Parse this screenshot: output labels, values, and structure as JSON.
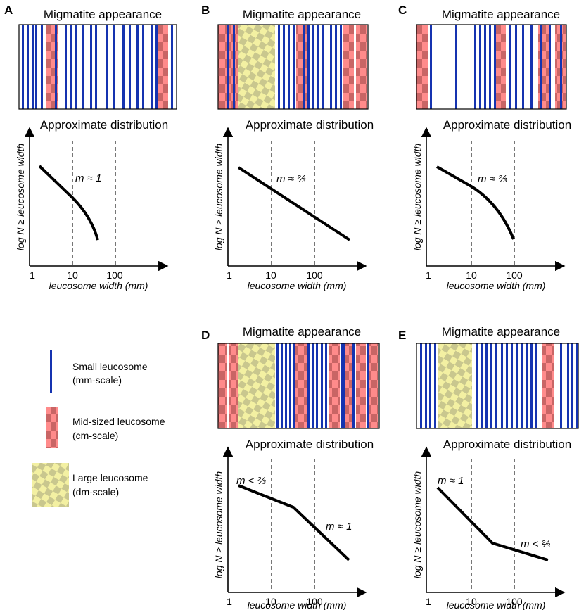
{
  "colors": {
    "small_leucosome": "#1533b0",
    "mid_fill": "#ff8b8b",
    "mid_dark": "#c96565",
    "large_fill": "#f3f0a2",
    "large_dark": "#c9c78e",
    "dashed": "#777777"
  },
  "common": {
    "appearance_title": "Migmatite appearance",
    "distribution_title": "Approximate distribution",
    "x_axis_label": "leucosome width (mm)",
    "y_axis_label": "log N ≥ leucosome width",
    "ticks": [
      "1",
      "10",
      "100"
    ]
  },
  "panels": [
    {
      "id": "A",
      "label": "A",
      "slope_labels": [
        "m ≈ 1"
      ]
    },
    {
      "id": "B",
      "label": "B",
      "slope_labels": [
        "m ≈ ⅔"
      ]
    },
    {
      "id": "C",
      "label": "C",
      "slope_labels": [
        "m ≈ ⅔"
      ]
    },
    {
      "id": "D",
      "label": "D",
      "slope_labels": [
        "m < ⅔",
        "m ≈ 1"
      ]
    },
    {
      "id": "E",
      "label": "E",
      "slope_labels": [
        "m ≈ 1",
        "m < ⅔"
      ]
    }
  ],
  "legend": {
    "small": [
      "Small leucosome",
      "(mm-scale)"
    ],
    "mid": [
      "Mid-sized leucosome",
      "(cm-scale)"
    ],
    "large": [
      "Large leucosome",
      "(dm-scale)"
    ]
  }
}
